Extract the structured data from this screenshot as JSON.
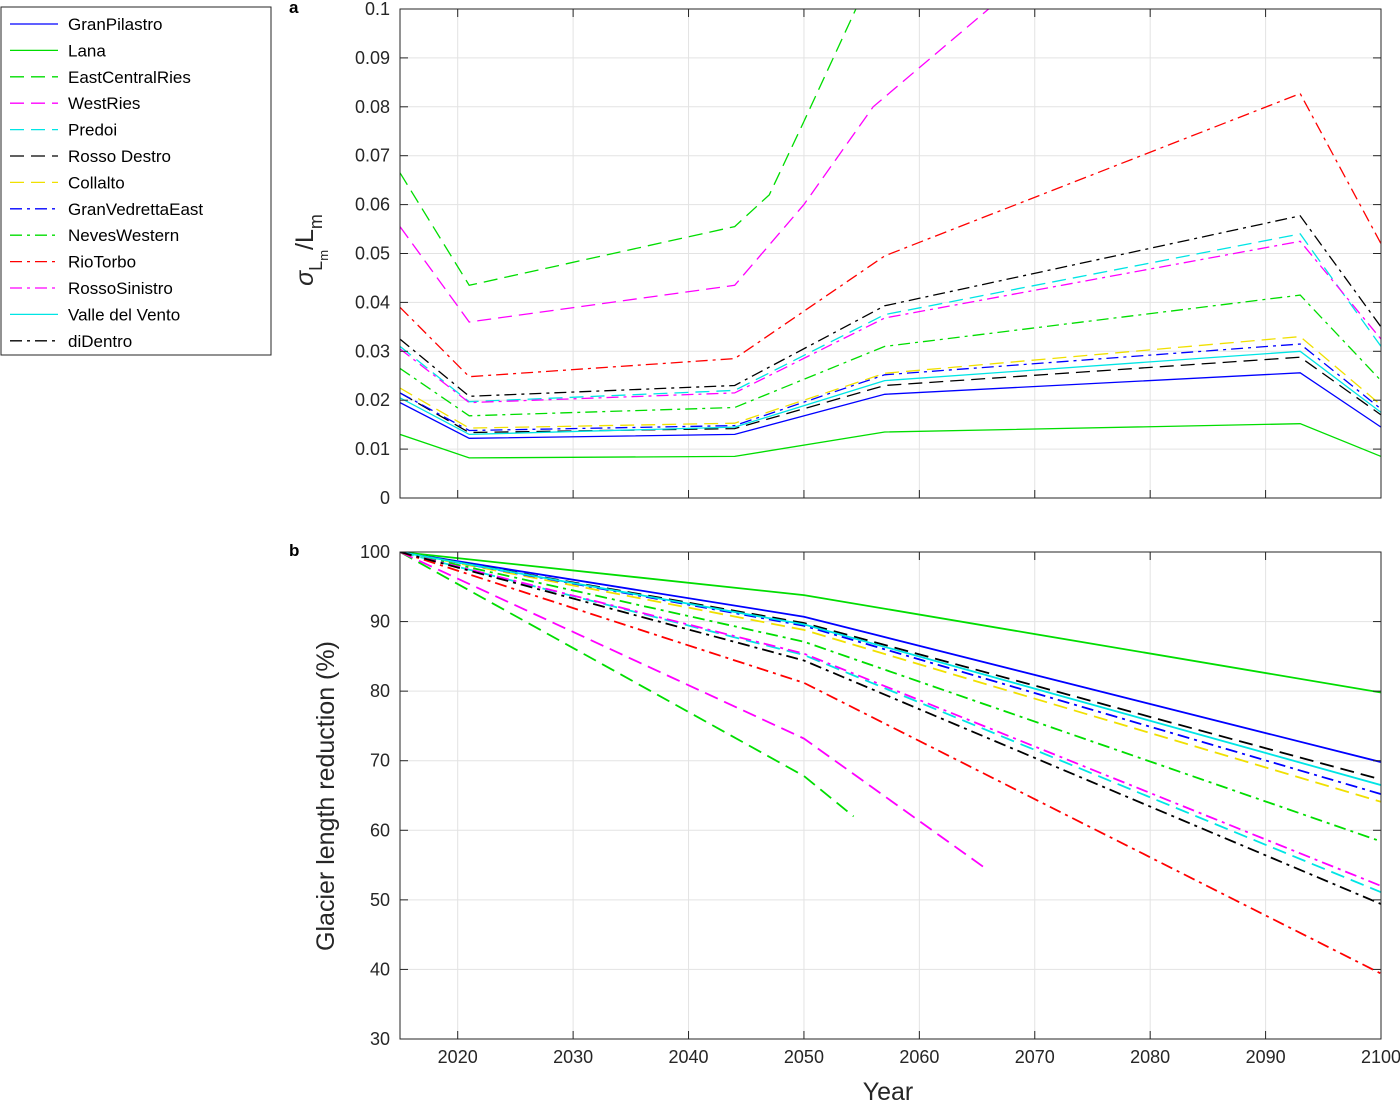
{
  "legend": {
    "entries": [
      {
        "name": "GranPilastro",
        "color": "#0000ff",
        "dash": "solid"
      },
      {
        "name": "Lana",
        "color": "#00dd00",
        "dash": "solid"
      },
      {
        "name": "EastCentralRies",
        "color": "#00dd00",
        "dash": "dash"
      },
      {
        "name": "WestRies",
        "color": "#ff00ff",
        "dash": "dash"
      },
      {
        "name": "Predoi",
        "color": "#00e5e5",
        "dash": "dash"
      },
      {
        "name": "Rosso Destro",
        "color": "#000000",
        "dash": "dash"
      },
      {
        "name": "Collalto",
        "color": "#f0e000",
        "dash": "dash"
      },
      {
        "name": "GranVedrettaEast",
        "color": "#0000ff",
        "dash": "dashdot"
      },
      {
        "name": "NevesWestern",
        "color": "#00dd00",
        "dash": "dashdot"
      },
      {
        "name": "RioTorbo",
        "color": "#ff0000",
        "dash": "dashdot"
      },
      {
        "name": "RossoSinistro",
        "color": "#ff00ff",
        "dash": "dashdot"
      },
      {
        "name": "Valle del Vento",
        "color": "#00e5e5",
        "dash": "solid"
      },
      {
        "name": "diDentro",
        "color": "#000000",
        "dash": "dashdot"
      }
    ]
  },
  "chart_data": [
    {
      "type": "line",
      "panel_label": "a",
      "xlabel": "",
      "ylabel_sigma": "σ",
      "ylabel_sub1": "L",
      "ylabel_sub2": "m",
      "ylabel_mid": "/L",
      "ylabel_sub3": "m",
      "xlim": [
        2015,
        2100
      ],
      "ylim": [
        0,
        0.1
      ],
      "xticks": [
        "2020",
        "2030",
        "2040",
        "2050",
        "2060",
        "2070",
        "2080",
        "2090",
        "2100"
      ],
      "xtick_values": [
        2020,
        2030,
        2040,
        2050,
        2060,
        2070,
        2080,
        2090,
        2100
      ],
      "yticks": [
        "0",
        "0.01",
        "0.02",
        "0.03",
        "0.04",
        "0.05",
        "0.06",
        "0.07",
        "0.08",
        "0.09",
        "0.1"
      ],
      "ytick_values": [
        0,
        0.01,
        0.02,
        0.03,
        0.04,
        0.05,
        0.06,
        0.07,
        0.08,
        0.09,
        0.1
      ],
      "grid": true,
      "series": [
        {
          "name": "GranPilastro",
          "x": [
            2015,
            2021,
            2044,
            2057,
            2093,
            2100
          ],
          "y": [
            0.0195,
            0.0122,
            0.013,
            0.0212,
            0.0256,
            0.0145
          ]
        },
        {
          "name": "Lana",
          "x": [
            2015,
            2021,
            2044,
            2057,
            2093,
            2100
          ],
          "y": [
            0.013,
            0.0082,
            0.0085,
            0.0135,
            0.0152,
            0.0085
          ]
        },
        {
          "name": "EastCentralRies",
          "x": [
            2015,
            2021,
            2044,
            2047,
            2050,
            2054.5
          ],
          "y": [
            0.0665,
            0.0435,
            0.0555,
            0.062,
            0.077,
            0.1
          ]
        },
        {
          "name": "WestRies",
          "x": [
            2015,
            2021,
            2044,
            2050,
            2056,
            2066
          ],
          "y": [
            0.0555,
            0.036,
            0.0435,
            0.06,
            0.08,
            0.1
          ]
        },
        {
          "name": "Predoi",
          "x": [
            2015,
            2021,
            2044,
            2057,
            2093,
            2100
          ],
          "y": [
            0.031,
            0.0197,
            0.022,
            0.0375,
            0.054,
            0.031
          ]
        },
        {
          "name": "Rosso Destro",
          "x": [
            2015,
            2021,
            2044,
            2057,
            2093,
            2100
          ],
          "y": [
            0.0215,
            0.0134,
            0.0142,
            0.023,
            0.0288,
            0.017
          ]
        },
        {
          "name": "Collalto",
          "x": [
            2015,
            2021,
            2044,
            2057,
            2093,
            2100
          ],
          "y": [
            0.0225,
            0.0143,
            0.0153,
            0.0255,
            0.033,
            0.019
          ]
        },
        {
          "name": "GranVedrettaEast",
          "x": [
            2015,
            2021,
            2044,
            2057,
            2093,
            2100
          ],
          "y": [
            0.0215,
            0.0138,
            0.0148,
            0.0252,
            0.0315,
            0.0182
          ]
        },
        {
          "name": "NevesWestern",
          "x": [
            2015,
            2021,
            2044,
            2057,
            2093,
            2100
          ],
          "y": [
            0.0265,
            0.0168,
            0.0185,
            0.031,
            0.0415,
            0.024
          ]
        },
        {
          "name": "RioTorbo",
          "x": [
            2015,
            2021,
            2044,
            2057,
            2093,
            2100
          ],
          "y": [
            0.039,
            0.0248,
            0.0285,
            0.0495,
            0.0827,
            0.052
          ]
        },
        {
          "name": "RossoSinistro",
          "x": [
            2015,
            2021,
            2044,
            2057,
            2093,
            2100
          ],
          "y": [
            0.0305,
            0.0195,
            0.0215,
            0.0368,
            0.0525,
            0.0325
          ]
        },
        {
          "name": "Valle del Vento",
          "x": [
            2015,
            2021,
            2044,
            2057,
            2093,
            2100
          ],
          "y": [
            0.0205,
            0.013,
            0.0145,
            0.024,
            0.03,
            0.0175
          ]
        },
        {
          "name": "diDentro",
          "x": [
            2015,
            2021,
            2044,
            2057,
            2093,
            2100
          ],
          "y": [
            0.0325,
            0.0208,
            0.023,
            0.0393,
            0.0577,
            0.035
          ]
        }
      ]
    },
    {
      "type": "line",
      "panel_label": "b",
      "xlabel": "Year",
      "ylabel": "Glacier length reduction (%)",
      "xlim": [
        2015,
        2100
      ],
      "ylim": [
        30,
        100
      ],
      "xticks": [
        "2020",
        "2030",
        "2040",
        "2050",
        "2060",
        "2070",
        "2080",
        "2090",
        "2100"
      ],
      "xtick_values": [
        2020,
        2030,
        2040,
        2050,
        2060,
        2070,
        2080,
        2090,
        2100
      ],
      "yticks": [
        "30",
        "40",
        "50",
        "60",
        "70",
        "80",
        "90",
        "100"
      ],
      "ytick_values": [
        30,
        40,
        50,
        60,
        70,
        80,
        90,
        100
      ],
      "grid": true,
      "series": [
        {
          "name": "GranPilastro",
          "x": [
            2015,
            2050,
            2100
          ],
          "y": [
            100,
            90.7,
            69.8
          ]
        },
        {
          "name": "Lana",
          "x": [
            2015,
            2050,
            2100
          ],
          "y": [
            100,
            93.8,
            79.8
          ]
        },
        {
          "name": "EastCentralRies",
          "x": [
            2015,
            2050,
            2054.3
          ],
          "y": [
            100,
            67.8,
            62
          ]
        },
        {
          "name": "WestRies",
          "x": [
            2015,
            2050,
            2066
          ],
          "y": [
            100,
            73.2,
            54.2
          ]
        },
        {
          "name": "Predoi",
          "x": [
            2015,
            2050,
            2100
          ],
          "y": [
            100,
            85.2,
            51.1
          ]
        },
        {
          "name": "Rosso Destro",
          "x": [
            2015,
            2050,
            2100
          ],
          "y": [
            100,
            89.8,
            67.3
          ]
        },
        {
          "name": "Collalto",
          "x": [
            2015,
            2050,
            2100
          ],
          "y": [
            100,
            88.8,
            64.1
          ]
        },
        {
          "name": "GranVedrettaEast",
          "x": [
            2015,
            2050,
            2100
          ],
          "y": [
            100,
            89.4,
            65.2
          ]
        },
        {
          "name": "NevesWestern",
          "x": [
            2015,
            2050,
            2100
          ],
          "y": [
            100,
            87.1,
            58.4
          ]
        },
        {
          "name": "RioTorbo",
          "x": [
            2015,
            2050,
            2100
          ],
          "y": [
            100,
            81.2,
            39.4
          ]
        },
        {
          "name": "RossoSinistro",
          "x": [
            2015,
            2050,
            2100
          ],
          "y": [
            100,
            85.4,
            52.0
          ]
        },
        {
          "name": "Valle del Vento",
          "x": [
            2015,
            2050,
            2100
          ],
          "y": [
            100,
            89.6,
            66.5
          ]
        },
        {
          "name": "diDentro",
          "x": [
            2015,
            2050,
            2100
          ],
          "y": [
            100,
            84.4,
            49.4
          ]
        }
      ]
    }
  ]
}
